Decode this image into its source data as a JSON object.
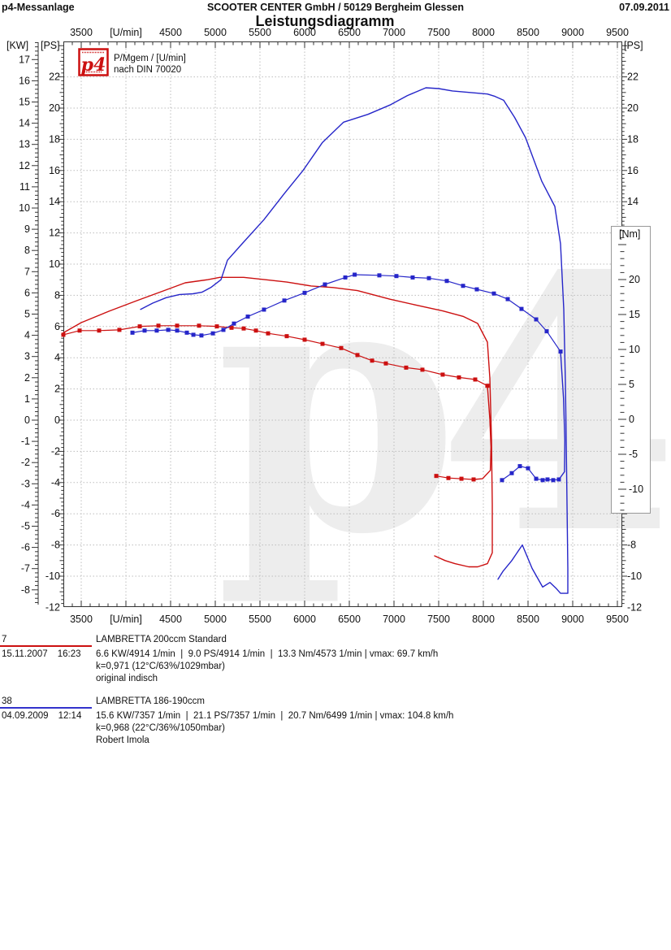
{
  "header": {
    "app_name": "p4-Messanlage",
    "company": "SCOOTER CENTER GmbH / 50129 Bergheim Glessen",
    "date": "07.09.2011",
    "title": "Leistungsdiagramm"
  },
  "legend": {
    "logo_text": "p4",
    "line1": "P/Mgem / [U/min]",
    "line2": "nach DIN 70020"
  },
  "watermark_text": "p4",
  "colors": {
    "red": "#cc1010",
    "blue": "#2626c9",
    "grid": "#bdbdbd",
    "axis": "#333333",
    "watermark": "#ededed",
    "nm_box_border": "#999999",
    "logo_red": "#cc1010"
  },
  "chart_data": {
    "type": "line",
    "title": "Leistungsdiagramm",
    "x_axis": {
      "unit_label": "[U/min]",
      "tick_min": 3500,
      "tick_max": 9500,
      "major_step": 500,
      "minor_step": 100,
      "label_replaced_at": 4000
    },
    "ps_axis": {
      "unit_label": "[PS]",
      "min": -12,
      "max": 22,
      "major_step": 2
    },
    "kw_axis": {
      "unit_label": "[KW]",
      "min": -8,
      "max": 17,
      "major_step": 1
    },
    "nm_axis": {
      "unit_label": "[Nm]",
      "min": -10,
      "max": 20,
      "major_step": 5
    },
    "grid": true,
    "series": [
      {
        "name": "power-red",
        "run_id": "7",
        "unit": "PS",
        "color": "#cc1010",
        "segments": [
          {
            "markers": false,
            "points": [
              [
                3300,
                5.6
              ],
              [
                3500,
                6.25
              ],
              [
                3818,
                7.0
              ],
              [
                4118,
                7.65
              ],
              [
                4427,
                8.3
              ],
              [
                4664,
                8.8
              ],
              [
                4914,
                9.0
              ],
              [
                5050,
                9.15
              ],
              [
                5318,
                9.15
              ],
              [
                5564,
                9.0
              ],
              [
                5800,
                8.85
              ],
              [
                6073,
                8.6
              ],
              [
                6318,
                8.5
              ],
              [
                6591,
                8.3
              ],
              [
                6955,
                7.75
              ],
              [
                7227,
                7.4
              ],
              [
                7545,
                7.0
              ],
              [
                7773,
                6.65
              ],
              [
                7936,
                6.2
              ],
              [
                8045,
                5.0
              ],
              [
                8073,
                2.7
              ],
              [
                8091,
                -1.2
              ],
              [
                8100,
                -5.4
              ],
              [
                8100,
                -8.5
              ],
              [
                8045,
                -9.2
              ],
              [
                7936,
                -9.4
              ],
              [
                7836,
                -9.4
              ],
              [
                7682,
                -9.2
              ],
              [
                7573,
                -9.0
              ],
              [
                7455,
                -8.7
              ]
            ]
          }
        ]
      },
      {
        "name": "torque-red",
        "run_id": "7",
        "unit": "Nm",
        "color": "#cc1010",
        "segments": [
          {
            "markers": true,
            "points": [
              [
                3300,
                12.1
              ],
              [
                3482,
                12.7
              ],
              [
                3700,
                12.7
              ],
              [
                3927,
                12.8
              ],
              [
                4155,
                13.3
              ],
              [
                4364,
                13.4
              ],
              [
                4573,
                13.4
              ],
              [
                4818,
                13.4
              ],
              [
                5018,
                13.3
              ],
              [
                5182,
                13.1
              ],
              [
                5318,
                13.0
              ],
              [
                5455,
                12.7
              ],
              [
                5591,
                12.3
              ],
              [
                5800,
                11.9
              ],
              [
                6000,
                11.4
              ],
              [
                6200,
                10.8
              ],
              [
                6409,
                10.2
              ],
              [
                6591,
                9.2
              ],
              [
                6755,
                8.4
              ],
              [
                6909,
                8.0
              ],
              [
                7136,
                7.4
              ],
              [
                7318,
                7.1
              ],
              [
                7545,
                6.4
              ],
              [
                7727,
                6.0
              ],
              [
                7909,
                5.7
              ],
              [
                8045,
                4.8
              ]
            ]
          },
          {
            "markers": false,
            "points": [
              [
                8045,
                4.8
              ],
              [
                8073,
                0.0
              ],
              [
                8085,
                -4.0
              ],
              [
                8078,
                -7.3
              ],
              [
                7990,
                -8.5
              ],
              [
                7891,
                -8.6
              ]
            ]
          },
          {
            "markers": true,
            "points": [
              [
                7891,
                -8.6
              ],
              [
                7755,
                -8.5
              ],
              [
                7609,
                -8.4
              ],
              [
                7473,
                -8.1
              ]
            ]
          }
        ]
      },
      {
        "name": "power-blue",
        "run_id": "38",
        "unit": "PS",
        "color": "#2626c9",
        "segments": [
          {
            "markers": false,
            "points": [
              [
                4164,
                7.1
              ],
              [
                4300,
                7.5
              ],
              [
                4450,
                7.85
              ],
              [
                4600,
                8.05
              ],
              [
                4750,
                8.1
              ],
              [
                4850,
                8.2
              ],
              [
                4950,
                8.5
              ],
              [
                5064,
                9.0
              ],
              [
                5136,
                10.25
              ],
              [
                5300,
                11.3
              ],
              [
                5545,
                12.85
              ],
              [
                5770,
                14.5
              ],
              [
                5982,
                16.0
              ],
              [
                6200,
                17.8
              ],
              [
                6436,
                19.1
              ],
              [
                6709,
                19.6
              ],
              [
                6955,
                20.2
              ],
              [
                7150,
                20.8
              ],
              [
                7357,
                21.3
              ],
              [
                7500,
                21.25
              ],
              [
                7655,
                21.1
              ],
              [
                7850,
                21.0
              ],
              [
                8045,
                20.9
              ],
              [
                8130,
                20.75
              ],
              [
                8227,
                20.5
              ],
              [
                8350,
                19.4
              ],
              [
                8473,
                18.1
              ],
              [
                8570,
                16.6
              ],
              [
                8655,
                15.3
              ],
              [
                8800,
                13.7
              ],
              [
                8864,
                11.3
              ],
              [
                8900,
                7.1
              ],
              [
                8918,
                2.4
              ],
              [
                8927,
                -1.2
              ],
              [
                8936,
                -5.4
              ],
              [
                8945,
                -9.5
              ],
              [
                8945,
                -11.1
              ],
              [
                8864,
                -11.1
              ],
              [
                8818,
                -10.8
              ],
              [
                8745,
                -10.4
              ],
              [
                8664,
                -10.7
              ],
              [
                8545,
                -9.5
              ],
              [
                8436,
                -8.0
              ],
              [
                8318,
                -9.0
              ],
              [
                8218,
                -9.7
              ],
              [
                8164,
                -10.2
              ]
            ]
          }
        ]
      },
      {
        "name": "torque-blue",
        "run_id": "38",
        "unit": "Nm",
        "color": "#2626c9",
        "segments": [
          {
            "markers": true,
            "points": [
              [
                4073,
                12.4
              ],
              [
                4209,
                12.7
              ],
              [
                4345,
                12.7
              ],
              [
                4473,
                12.8
              ],
              [
                4573,
                12.7
              ],
              [
                4682,
                12.4
              ],
              [
                4755,
                12.1
              ],
              [
                4845,
                12.0
              ],
              [
                4973,
                12.3
              ],
              [
                5091,
                12.8
              ],
              [
                5209,
                13.7
              ],
              [
                5364,
                14.7
              ],
              [
                5545,
                15.7
              ],
              [
                5773,
                17.0
              ],
              [
                6000,
                18.1
              ],
              [
                6227,
                19.3
              ],
              [
                6455,
                20.3
              ],
              [
                6560,
                20.7
              ],
              [
                6836,
                20.6
              ],
              [
                7027,
                20.5
              ],
              [
                7209,
                20.3
              ],
              [
                7391,
                20.2
              ],
              [
                7591,
                19.8
              ],
              [
                7773,
                19.1
              ],
              [
                7927,
                18.6
              ],
              [
                8118,
                18.0
              ],
              [
                8273,
                17.2
              ],
              [
                8427,
                15.8
              ],
              [
                8591,
                14.3
              ],
              [
                8709,
                12.6
              ],
              [
                8864,
                9.7
              ]
            ]
          },
          {
            "markers": false,
            "points": [
              [
                8864,
                9.7
              ],
              [
                8897,
                3.0
              ],
              [
                8912,
                -3.0
              ],
              [
                8908,
                -7.5
              ],
              [
                8845,
                -8.6
              ]
            ]
          },
          {
            "markers": true,
            "points": [
              [
                8845,
                -8.6
              ],
              [
                8782,
                -8.7
              ],
              [
                8718,
                -8.6
              ],
              [
                8664,
                -8.7
              ],
              [
                8591,
                -8.5
              ],
              [
                8500,
                -7.0
              ],
              [
                8409,
                -6.7
              ],
              [
                8318,
                -7.7
              ],
              [
                8209,
                -8.7
              ]
            ]
          }
        ]
      }
    ]
  },
  "runs": [
    {
      "id": "7",
      "color": "#cc1010",
      "vehicle": "LAMBRETTA 200ccm Standard",
      "date": "15.11.2007",
      "time": "16:23",
      "results": "6.6 KW/4914 1/min  |  9.0 PS/4914 1/min  |  13.3 Nm/4573 1/min | vmax: 69.7 km/h",
      "correction": "k=0,971 (12°C/63%/1029mbar)",
      "note": "original indisch"
    },
    {
      "id": "38",
      "color": "#3333cc",
      "vehicle": "LAMBRETTA 186-190ccm",
      "date": "04.09.2009",
      "time": "12:14",
      "results": "15.6 KW/7357 1/min  |  21.1 PS/7357 1/min  |  20.7 Nm/6499 1/min | vmax: 104.8 km/h",
      "correction": "k=0,968 (22°C/36%/1050mbar)",
      "note": "Robert Imola"
    }
  ]
}
